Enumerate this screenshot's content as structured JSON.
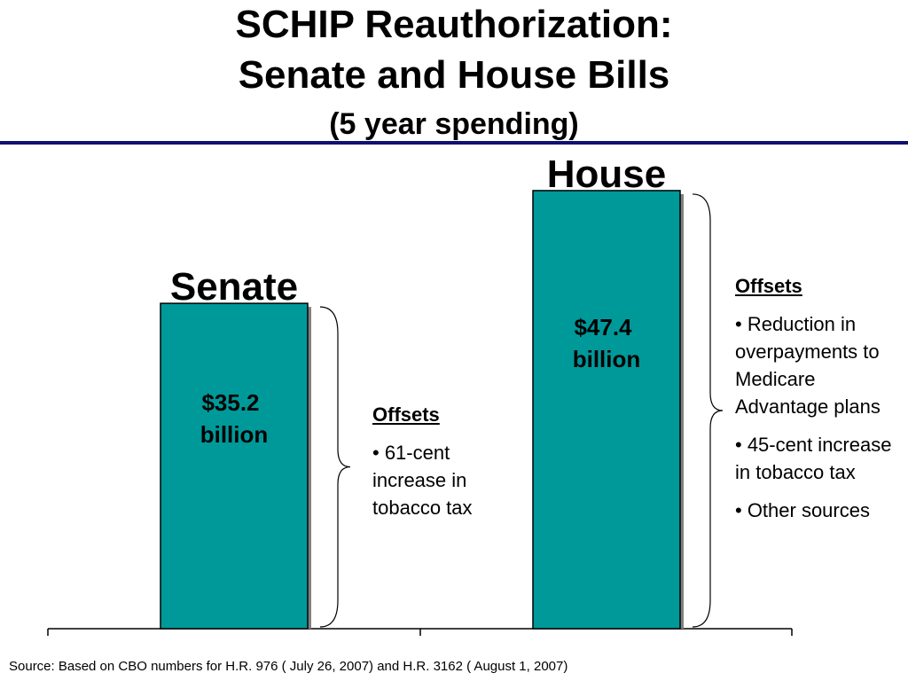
{
  "title": {
    "line1": "SCHIP Reauthorization:",
    "line2": "Senate and House Bills",
    "line3": "(5 year spending)"
  },
  "colors": {
    "bar": "#00999a",
    "rule": "#101070"
  },
  "chart_data": {
    "type": "bar",
    "title": "SCHIP Reauthorization: Senate and House Bills (5 year spending)",
    "categories": [
      "Senate",
      "House"
    ],
    "values": [
      35.2,
      47.4
    ],
    "value_labels": [
      [
        "$35.2",
        "billion"
      ],
      [
        "$47.4",
        "billion"
      ]
    ],
    "unit": "billion dollars",
    "xlabel": "",
    "ylabel": "",
    "ylim": [
      0,
      52
    ],
    "grid": false,
    "legend": "none"
  },
  "offsets": {
    "senate": {
      "heading": "Offsets",
      "items": [
        "• 61-cent increase in tobacco tax"
      ]
    },
    "house": {
      "heading": "Offsets",
      "items": [
        "• Reduction in overpayments to Medicare Advantage plans",
        "• 45-cent increase in tobacco tax",
        "• Other sources"
      ]
    }
  },
  "source": "Source: Based on CBO numbers for H.R. 976 ( July 26, 2007) and H.R. 3162 ( August 1, 2007)"
}
